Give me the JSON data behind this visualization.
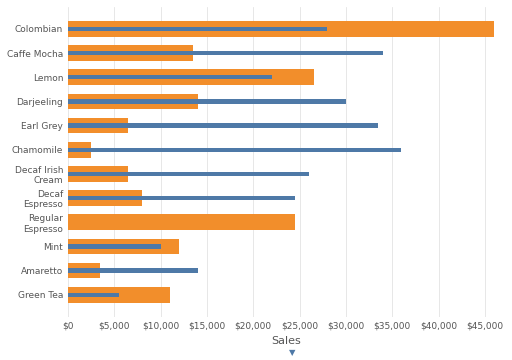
{
  "categories": [
    "Colombian",
    "Caffe Mocha",
    "Lemon",
    "Darjeeling",
    "Earl Grey",
    "Chamomile",
    "Decaf Irish\nCream",
    "Decaf\nEspresso",
    "Regular\nEspresso",
    "Mint",
    "Amaretto",
    "Green Tea"
  ],
  "orange_values": [
    46000,
    13500,
    26500,
    14000,
    6500,
    2500,
    6500,
    8000,
    24500,
    12000,
    3500,
    11000
  ],
  "blue_values": [
    28000,
    34000,
    22000,
    30000,
    33500,
    36000,
    26000,
    24500,
    0,
    10000,
    14000,
    5500
  ],
  "orange_color": "#F28E2B",
  "blue_color": "#4E79A7",
  "background_color": "#FFFFFF",
  "xlabel": "Sales",
  "xlim": [
    0,
    47000
  ],
  "orange_bar_height": 0.65,
  "blue_bar_height": 0.18,
  "title": "",
  "tick_labels": [
    "$0",
    "$5,000",
    "$10,000",
    "$15,000",
    "$20,000",
    "$25,000",
    "$30,000",
    "$35,000",
    "$40,000",
    "$45,000"
  ],
  "tick_values": [
    0,
    5000,
    10000,
    15000,
    20000,
    25000,
    30000,
    35000,
    40000,
    45000
  ]
}
